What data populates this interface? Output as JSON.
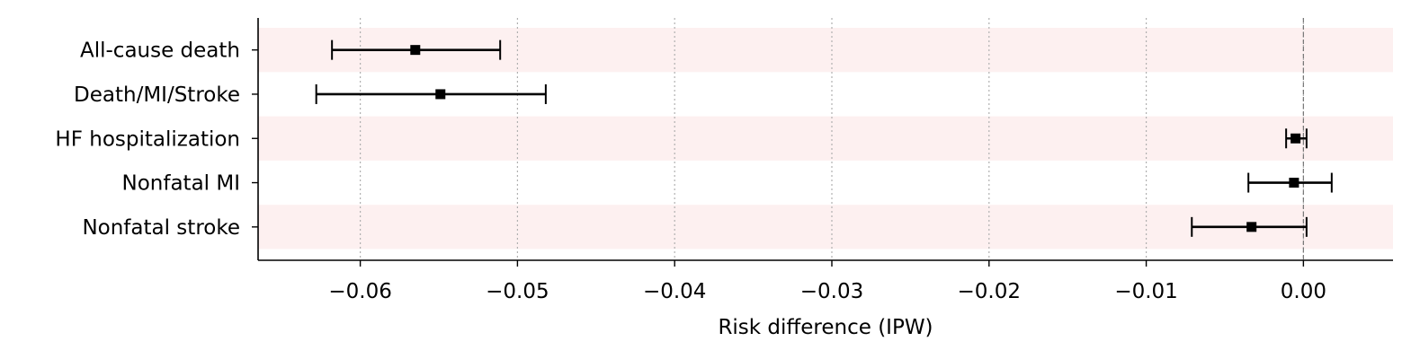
{
  "chart_data": {
    "type": "forest",
    "xlabel": "Risk difference (IPW)",
    "xlim": [
      -0.0665,
      0.0057
    ],
    "xticks": [
      -0.06,
      -0.05,
      -0.04,
      -0.03,
      -0.02,
      -0.01,
      0.0
    ],
    "xtick_labels": [
      "−0.06",
      "−0.05",
      "−0.04",
      "−0.03",
      "−0.02",
      "−0.01",
      "0.00"
    ],
    "grid_x": true,
    "reference_line": 0,
    "rows": [
      {
        "label": "All-cause death",
        "estimate": -0.0565,
        "lower": -0.0618,
        "upper": -0.0511,
        "shaded": true
      },
      {
        "label": "Death/MI/Stroke",
        "estimate": -0.0549,
        "lower": -0.0628,
        "upper": -0.0482,
        "shaded": false
      },
      {
        "label": "HF hospitalization",
        "estimate": -0.0005,
        "lower": -0.0011,
        "upper": 0.0002,
        "shaded": true
      },
      {
        "label": "Nonfatal MI",
        "estimate": -0.0006,
        "lower": -0.0035,
        "upper": 0.0018,
        "shaded": false
      },
      {
        "label": "Nonfatal stroke",
        "estimate": -0.0033,
        "lower": -0.0071,
        "upper": 0.0002,
        "shaded": true
      }
    ],
    "colors": {
      "band": "#fdf0f0",
      "marker": "#000000",
      "grid": "#b0b0b0",
      "reference": "#777777",
      "axis": "#000000"
    }
  }
}
